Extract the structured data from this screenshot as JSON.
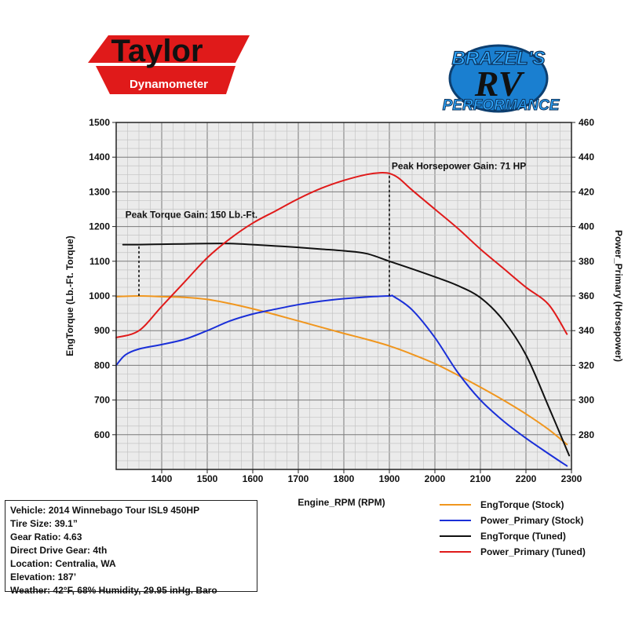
{
  "brands": {
    "left_logo": {
      "top": "Taylor",
      "bottom": "Dynamometer"
    },
    "right_logo": {
      "top": "BRAZEL'S",
      "middle": "RV",
      "bottom": "PERFORMANCE"
    }
  },
  "vehicle_info": [
    "Vehicle: 2014 Winnebago Tour ISL9 450HP",
    "Tire Size: 39.1”",
    "Gear Ratio: 4.63",
    "Direct Drive Gear: 4th",
    "Location: Centralia, WA",
    "Elevation: 187’",
    "Weather: 42°F, 68% Humidity, 29.95 inHg. Baro"
  ],
  "chart_data": {
    "type": "line",
    "xlabel": "Engine_RPM (RPM)",
    "ylabel": "EngTorque (Lb.-Ft. Torque)",
    "y2label": "Power_Primary (Horsepower)",
    "xlim": [
      1300,
      2300
    ],
    "ylim": [
      500,
      1500
    ],
    "y2lim": [
      260,
      460
    ],
    "x_ticks": [
      1400,
      1500,
      1600,
      1700,
      1800,
      1900,
      2000,
      2100,
      2200,
      2300
    ],
    "y_ticks": [
      600,
      700,
      800,
      900,
      1000,
      1100,
      1200,
      1300,
      1400,
      1500
    ],
    "y2_ticks": [
      280,
      300,
      320,
      340,
      360,
      380,
      400,
      420,
      440,
      460
    ],
    "grid": true,
    "legend_position": "bottom-right",
    "series": [
      {
        "name": "EngTorque (Stock)",
        "axis": "left",
        "color": "#f0961e",
        "points": [
          [
            1300,
            998
          ],
          [
            1350,
            1000
          ],
          [
            1400,
            998
          ],
          [
            1450,
            996
          ],
          [
            1500,
            990
          ],
          [
            1550,
            978
          ],
          [
            1600,
            963
          ],
          [
            1650,
            946
          ],
          [
            1700,
            928
          ],
          [
            1750,
            910
          ],
          [
            1800,
            892
          ],
          [
            1850,
            875
          ],
          [
            1900,
            856
          ],
          [
            1950,
            832
          ],
          [
            2000,
            805
          ],
          [
            2050,
            772
          ],
          [
            2100,
            737
          ],
          [
            2150,
            700
          ],
          [
            2200,
            660
          ],
          [
            2250,
            615
          ],
          [
            2290,
            572
          ]
        ]
      },
      {
        "name": "Power_Primary (Stock)",
        "axis": "left",
        "color": "#1a2fd8",
        "points": [
          [
            1300,
            800
          ],
          [
            1320,
            830
          ],
          [
            1350,
            847
          ],
          [
            1400,
            860
          ],
          [
            1450,
            875
          ],
          [
            1500,
            900
          ],
          [
            1550,
            928
          ],
          [
            1600,
            948
          ],
          [
            1650,
            962
          ],
          [
            1700,
            975
          ],
          [
            1750,
            985
          ],
          [
            1800,
            992
          ],
          [
            1850,
            997
          ],
          [
            1900,
            1000
          ],
          [
            1910,
            998
          ],
          [
            1950,
            960
          ],
          [
            2000,
            880
          ],
          [
            2050,
            780
          ],
          [
            2100,
            700
          ],
          [
            2150,
            640
          ],
          [
            2200,
            590
          ],
          [
            2250,
            545
          ],
          [
            2290,
            510
          ]
        ]
      },
      {
        "name": "EngTorque (Tuned)",
        "axis": "left",
        "color": "#111111",
        "points": [
          [
            1315,
            1148
          ],
          [
            1350,
            1148
          ],
          [
            1400,
            1149
          ],
          [
            1450,
            1150
          ],
          [
            1500,
            1151
          ],
          [
            1550,
            1151
          ],
          [
            1600,
            1148
          ],
          [
            1650,
            1144
          ],
          [
            1700,
            1140
          ],
          [
            1750,
            1135
          ],
          [
            1800,
            1130
          ],
          [
            1850,
            1122
          ],
          [
            1900,
            1100
          ],
          [
            1950,
            1078
          ],
          [
            2000,
            1055
          ],
          [
            2050,
            1030
          ],
          [
            2100,
            995
          ],
          [
            2150,
            930
          ],
          [
            2200,
            830
          ],
          [
            2250,
            680
          ],
          [
            2295,
            540
          ]
        ]
      },
      {
        "name": "Power_Primary (Tuned)",
        "axis": "left",
        "color": "#e01a1a",
        "points": [
          [
            1300,
            880
          ],
          [
            1350,
            900
          ],
          [
            1400,
            970
          ],
          [
            1450,
            1040
          ],
          [
            1500,
            1110
          ],
          [
            1550,
            1165
          ],
          [
            1600,
            1210
          ],
          [
            1650,
            1245
          ],
          [
            1700,
            1280
          ],
          [
            1750,
            1310
          ],
          [
            1800,
            1333
          ],
          [
            1850,
            1350
          ],
          [
            1880,
            1355
          ],
          [
            1900,
            1353
          ],
          [
            1920,
            1340
          ],
          [
            1950,
            1305
          ],
          [
            2000,
            1250
          ],
          [
            2050,
            1195
          ],
          [
            2100,
            1135
          ],
          [
            2150,
            1080
          ],
          [
            2200,
            1025
          ],
          [
            2250,
            975
          ],
          [
            2290,
            890
          ]
        ]
      }
    ],
    "annotations": [
      {
        "text": "Peak Torque Gain: 150 Lb.-Ft.",
        "x": 1320,
        "y": 1225,
        "line_x": 1350,
        "line_from": 1000,
        "line_to": 1148
      },
      {
        "text": "Peak Horsepower Gain: 71 HP",
        "x": 1905,
        "y": 1365,
        "line_x": 1900,
        "line_from": 1000,
        "line_to": 1353
      }
    ]
  }
}
